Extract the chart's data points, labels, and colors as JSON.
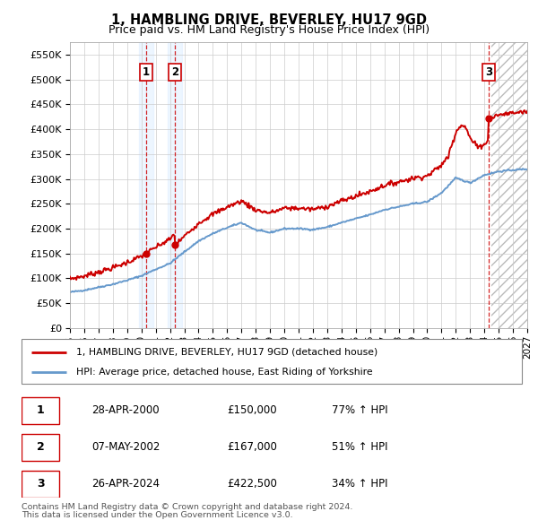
{
  "title": "1, HAMBLING DRIVE, BEVERLEY, HU17 9GD",
  "subtitle": "Price paid vs. HM Land Registry's House Price Index (HPI)",
  "ylim": [
    0,
    575000
  ],
  "yticks": [
    0,
    50000,
    100000,
    150000,
    200000,
    250000,
    300000,
    350000,
    400000,
    450000,
    500000,
    550000
  ],
  "legend_line1": "1, HAMBLING DRIVE, BEVERLEY, HU17 9GD (detached house)",
  "legend_line2": "HPI: Average price, detached house, East Riding of Yorkshire",
  "transactions": [
    {
      "num": 1,
      "date": "28-APR-2000",
      "price": 150000,
      "pct": "77% ↑ HPI",
      "year": 2000.32
    },
    {
      "num": 2,
      "date": "07-MAY-2002",
      "price": 167000,
      "pct": "51% ↑ HPI",
      "year": 2002.37
    },
    {
      "num": 3,
      "date": "26-APR-2024",
      "price": 422500,
      "pct": "34% ↑ HPI",
      "year": 2024.32
    }
  ],
  "footnote1": "Contains HM Land Registry data © Crown copyright and database right 2024.",
  "footnote2": "This data is licensed under the Open Government Licence v3.0.",
  "hpi_color": "#6699cc",
  "price_color": "#cc0000",
  "grid_color": "#cccccc",
  "shade_color": "#ddeeff",
  "marker_color": "#cc0000",
  "xmin": 1995,
  "xmax": 2027,
  "hpi_years": [
    1995,
    1996,
    1997,
    1998,
    1999,
    2000,
    2001,
    2002,
    2003,
    2004,
    2005,
    2006,
    2007,
    2008,
    2009,
    2010,
    2011,
    2012,
    2013,
    2014,
    2015,
    2016,
    2017,
    2018,
    2019,
    2020,
    2021,
    2022,
    2023,
    2024,
    2025,
    2026,
    2027
  ],
  "hpi_vals": [
    72000,
    76000,
    82000,
    88000,
    96000,
    105000,
    118000,
    130000,
    153000,
    175000,
    190000,
    202000,
    212000,
    197000,
    192000,
    200000,
    200000,
    198000,
    203000,
    212000,
    220000,
    228000,
    238000,
    244000,
    250000,
    254000,
    272000,
    302000,
    292000,
    308000,
    315000,
    318000,
    320000
  ]
}
